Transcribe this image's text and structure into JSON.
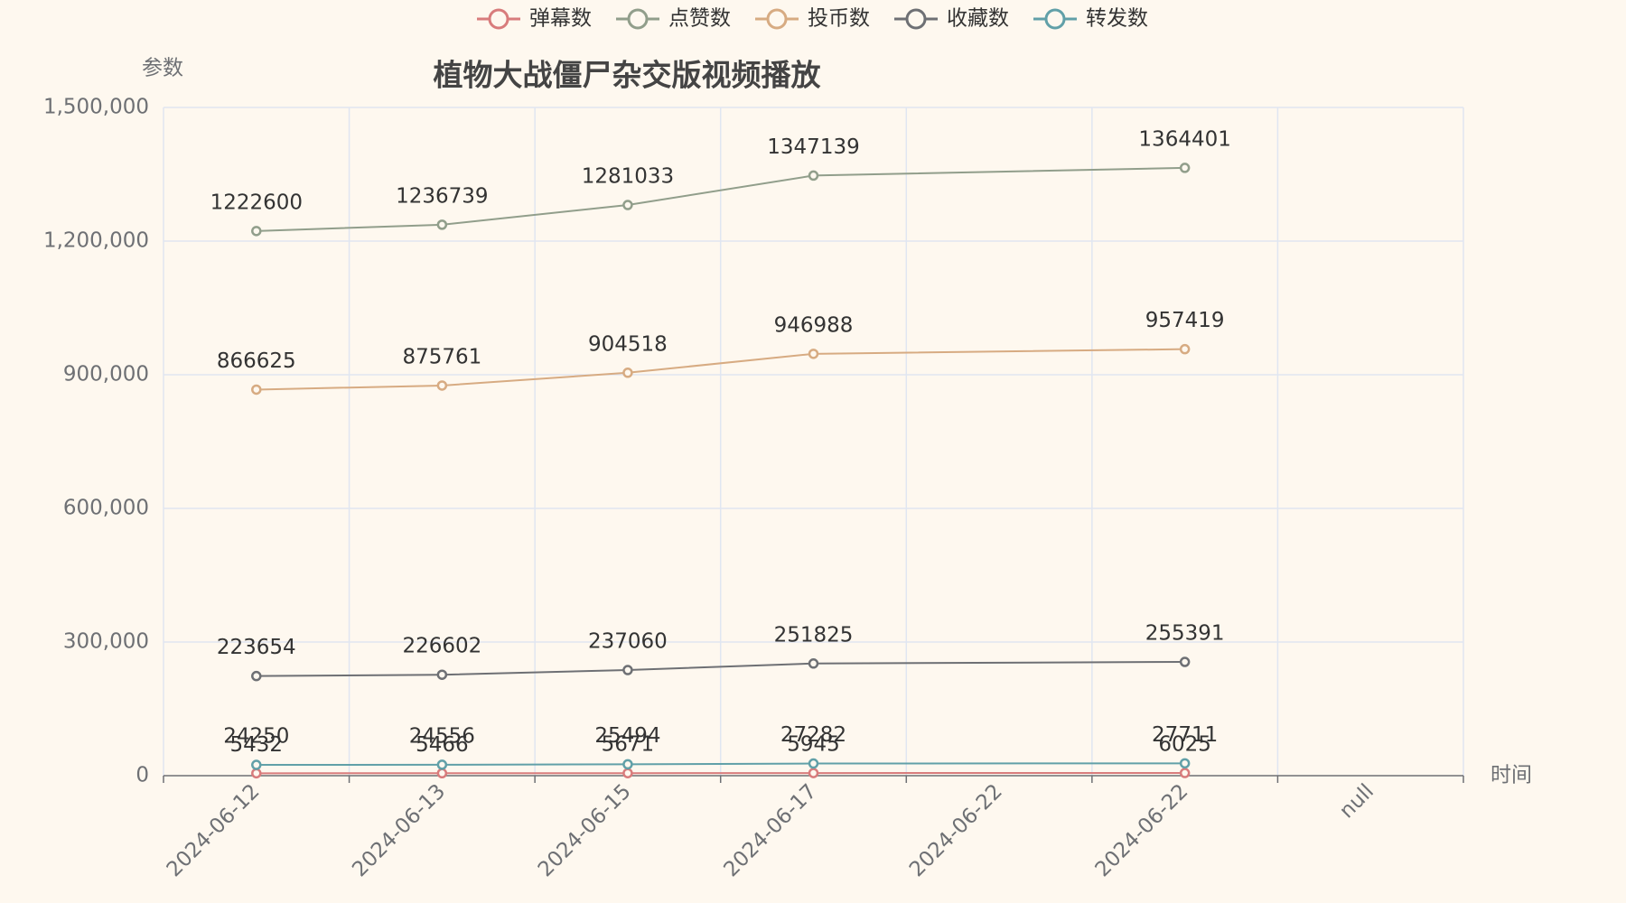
{
  "chart_data": {
    "type": "line",
    "title": "植物大战僵尸杂交版视频播放",
    "y_axis_label": "参数",
    "x_axis_label": "时间",
    "categories": [
      "2024-06-12",
      "2024-06-13",
      "2024-06-15",
      "2024-06-17",
      "2024-06-22",
      "2024-06-22",
      "null"
    ],
    "series": [
      {
        "name": "弹幕数",
        "color": "#d87c7c",
        "values": [
          5432,
          5466,
          5671,
          5945,
          null,
          6025,
          null
        ]
      },
      {
        "name": "点赞数",
        "color": "#919e8b",
        "values": [
          1222600,
          1236739,
          1281033,
          1347139,
          null,
          1364401,
          null
        ]
      },
      {
        "name": "投币数",
        "color": "#d7ab82",
        "values": [
          866625,
          875761,
          904518,
          946988,
          null,
          957419,
          null
        ]
      },
      {
        "name": "收藏数",
        "color": "#6e7074",
        "values": [
          223654,
          226602,
          237060,
          251825,
          null,
          255391,
          null
        ]
      },
      {
        "name": "转发数",
        "color": "#61a0a8",
        "values": [
          24250,
          24556,
          25494,
          27282,
          null,
          27711,
          null
        ]
      }
    ],
    "ylim": [
      0,
      1500000
    ],
    "yticks": [
      0,
      {
        "value": 300000,
        "label": "300,000"
      },
      {
        "value": 600000,
        "label": "600,000"
      },
      {
        "value": 900000,
        "label": "900,000"
      },
      {
        "value": 1200000,
        "label": "1,200,000"
      },
      {
        "value": 1500000,
        "label": "1,500,000"
      }
    ],
    "grid": true,
    "connect_nulls": true,
    "legend_position": "top"
  }
}
